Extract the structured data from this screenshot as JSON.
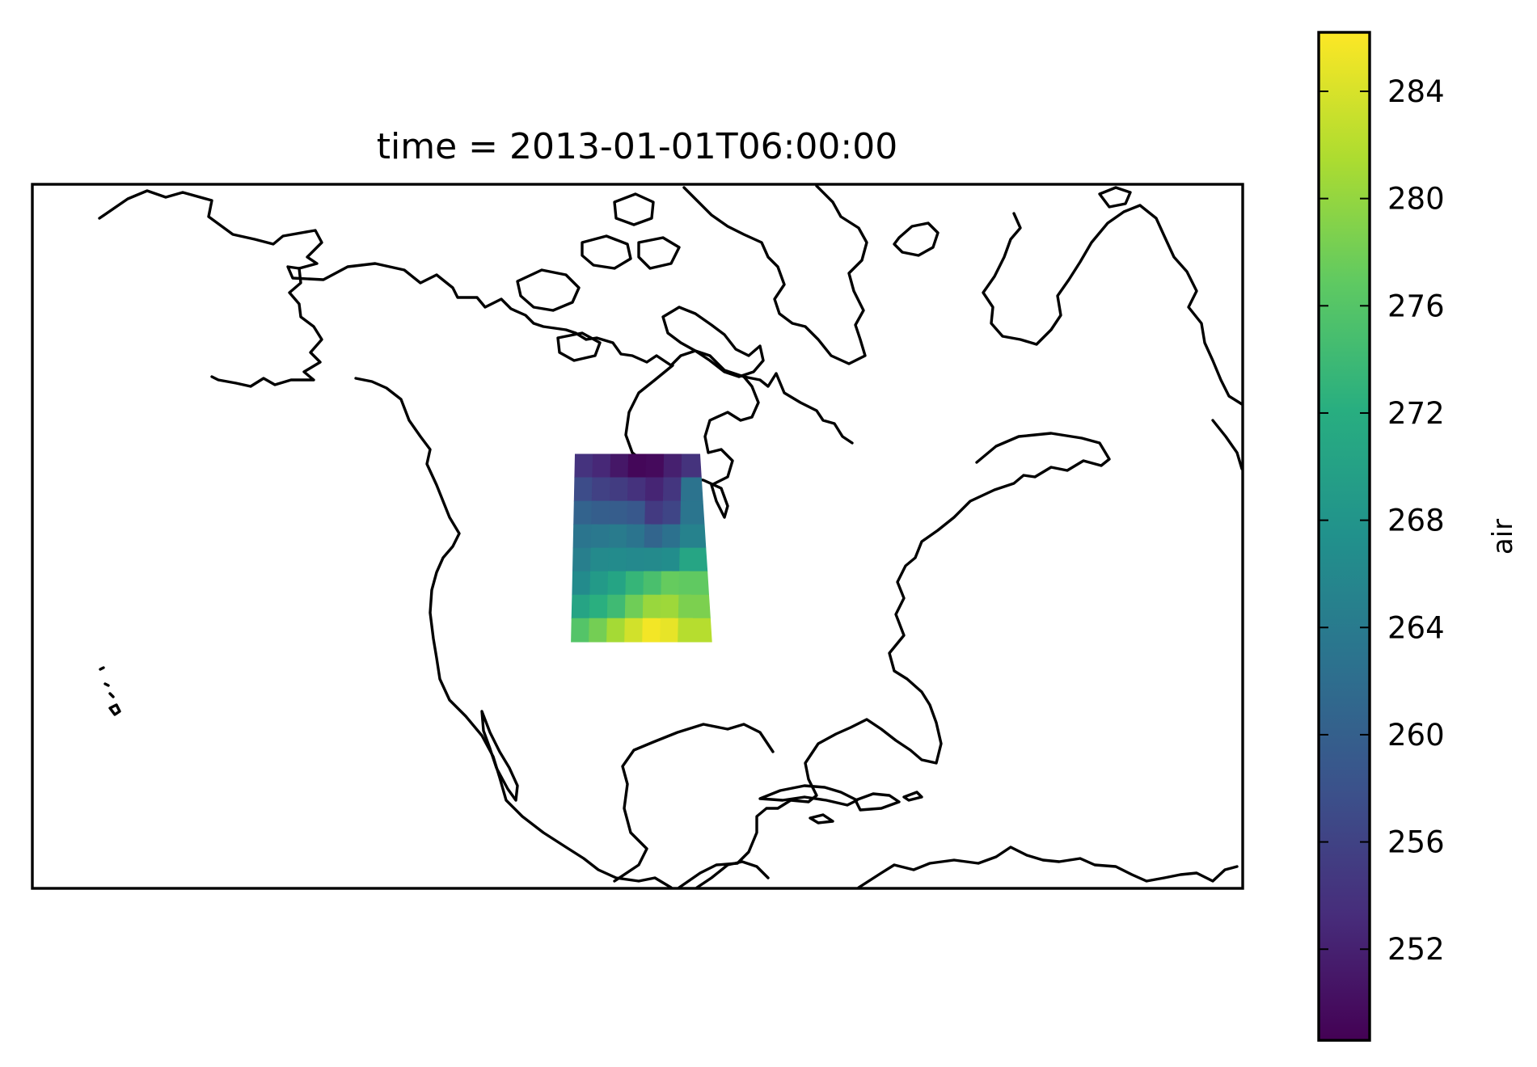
{
  "chart_data": {
    "type": "heatmap",
    "title": "time = 2013-01-01T06:00:00",
    "colorbar": {
      "label": "air",
      "vmin": 248.6,
      "vmax": 286.2,
      "ticks": [
        252,
        256,
        260,
        264,
        268,
        272,
        276,
        280,
        284
      ],
      "tick_labels": [
        "252",
        "256",
        "260",
        "264",
        "268",
        "272",
        "276",
        "280",
        "284"
      ],
      "colormap": "viridis"
    },
    "map": {
      "projection": "PlateCarree",
      "extent_lon": [
        -180,
        -10
      ],
      "extent_lat": [
        5,
        80
      ],
      "coastlines": true
    },
    "grid": {
      "lat": [
        50,
        47.5,
        45,
        42.5,
        40,
        37.5,
        35,
        32.5
      ],
      "lon": [
        -102.5,
        -100,
        -97.5,
        -95,
        -92.5,
        -90,
        -87.5
      ],
      "values": [
        [
          254.1,
          252.8,
          250.9,
          249.2,
          249.6,
          251.9,
          254.0
        ],
        [
          257.3,
          255.8,
          255.2,
          253.9,
          252.4,
          254.5,
          262.8
        ],
        [
          260.5,
          259.8,
          259.6,
          258.9,
          255.0,
          256.4,
          263.1
        ],
        [
          263.2,
          263.6,
          264.1,
          263.0,
          260.8,
          262.6,
          265.2
        ],
        [
          264.6,
          266.3,
          266.5,
          266.2,
          266.3,
          266.8,
          270.6
        ],
        [
          266.5,
          268.9,
          270.4,
          273.3,
          275.1,
          277.2,
          276.9
        ],
        [
          270.5,
          272.3,
          274.2,
          277.8,
          280.3,
          280.6,
          278.6
        ],
        [
          275.9,
          278.1,
          281.0,
          283.6,
          285.6,
          284.9,
          282.0
        ]
      ]
    }
  }
}
